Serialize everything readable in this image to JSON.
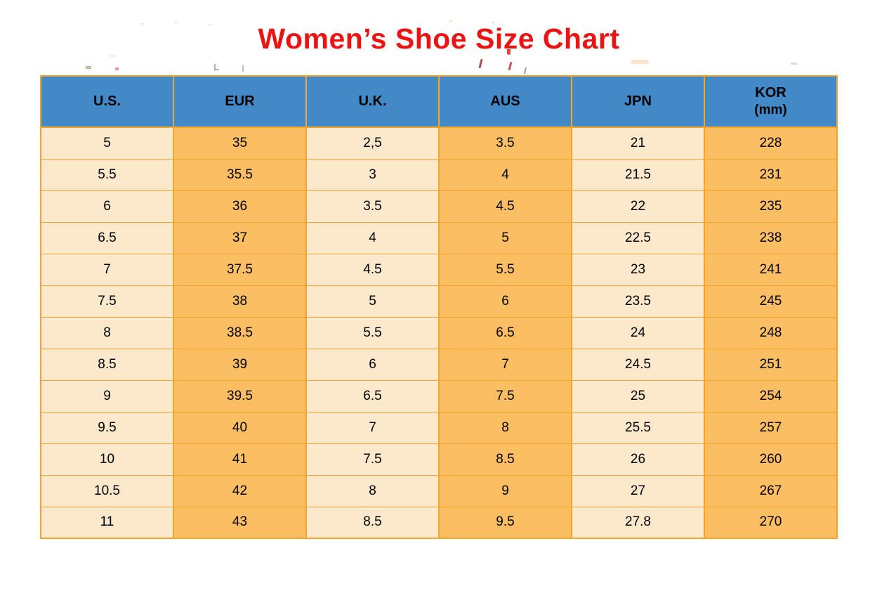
{
  "title": "Women’s Shoe Size Chart",
  "colors": {
    "title": "#EC1313",
    "header_bg": "#4189C7",
    "cell_light": "#FCE8CA",
    "cell_orange": "#FCBE63",
    "border": "#F5A42B",
    "text": "#000000"
  },
  "chart_data": {
    "type": "table",
    "title": "Women’s Shoe Size Chart",
    "columns": [
      {
        "label": "U.S.",
        "sublabel": "",
        "style": "light"
      },
      {
        "label": "EUR",
        "sublabel": "",
        "style": "orange"
      },
      {
        "label": "U.K.",
        "sublabel": "",
        "style": "light"
      },
      {
        "label": "AUS",
        "sublabel": "",
        "style": "orange"
      },
      {
        "label": "JPN",
        "sublabel": "",
        "style": "light"
      },
      {
        "label": "KOR",
        "sublabel": "(mm)",
        "style": "orange"
      }
    ],
    "rows": [
      [
        "5",
        "35",
        "2,5",
        "3.5",
        "21",
        "228"
      ],
      [
        "5.5",
        "35.5",
        "3",
        "4",
        "21.5",
        "231"
      ],
      [
        "6",
        "36",
        "3.5",
        "4.5",
        "22",
        "235"
      ],
      [
        "6.5",
        "37",
        "4",
        "5",
        "22.5",
        "238"
      ],
      [
        "7",
        "37.5",
        "4.5",
        "5.5",
        "23",
        "241"
      ],
      [
        "7.5",
        "38",
        "5",
        "6",
        "23.5",
        "245"
      ],
      [
        "8",
        "38.5",
        "5.5",
        "6.5",
        "24",
        "248"
      ],
      [
        "8.5",
        "39",
        "6",
        "7",
        "24.5",
        "251"
      ],
      [
        "9",
        "39.5",
        "6.5",
        "7.5",
        "25",
        "254"
      ],
      [
        "9.5",
        "40",
        "7",
        "8",
        "25.5",
        "257"
      ],
      [
        "10",
        "41",
        "7.5",
        "8.5",
        "26",
        "260"
      ],
      [
        "10.5",
        "42",
        "8",
        "9",
        "27",
        "267"
      ],
      [
        "11",
        "43",
        "8.5",
        "9.5",
        "27.8",
        "270"
      ]
    ]
  }
}
